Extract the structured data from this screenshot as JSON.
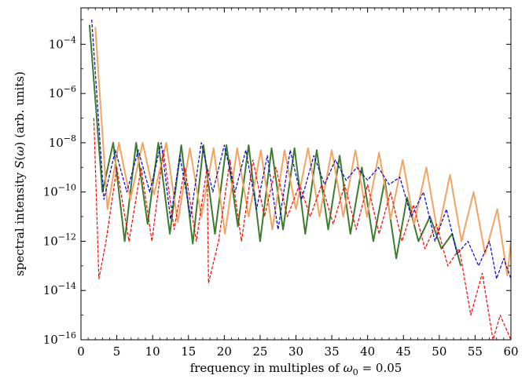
{
  "chart_data": {
    "type": "line",
    "scale": {
      "x": "linear",
      "y": "log"
    },
    "xlabel": {
      "prefix": "frequency in multiples of ",
      "symbol": "ω",
      "subscript": "0",
      "suffix": " = 0.05"
    },
    "ylabel": {
      "prefix": "spectral intensity ",
      "symbol": "S",
      "arg": "ω",
      "suffix": " (arb. units)"
    },
    "xlim": [
      0,
      60
    ],
    "ylim": [
      1e-16,
      0.003
    ],
    "x_ticks": [
      0,
      5,
      10,
      15,
      20,
      25,
      30,
      35,
      40,
      45,
      50,
      55,
      60
    ],
    "x_tick_labels": [
      "0",
      "5",
      "10",
      "15",
      "20",
      "25",
      "30",
      "35",
      "40",
      "45",
      "50",
      "55",
      "60"
    ],
    "y_ticks": [
      1e-16,
      1e-14,
      1e-12,
      1e-10,
      1e-08,
      1e-06,
      0.0001
    ],
    "y_tick_labels": [
      {
        "base": "10",
        "exp": "−16"
      },
      {
        "base": "10",
        "exp": "−14"
      },
      {
        "base": "10",
        "exp": "−12"
      },
      {
        "base": "10",
        "exp": "−10"
      },
      {
        "base": "10",
        "exp": "−8"
      },
      {
        "base": "10",
        "exp": "−6"
      },
      {
        "base": "10",
        "exp": "−4"
      }
    ],
    "grid": false,
    "legend": "none",
    "series": [
      {
        "color": "#3a7d2c",
        "style": "solid",
        "width": 2.0,
        "peaks": [
          [
            1.2,
            0.0006
          ],
          [
            4.5,
            1e-08
          ],
          [
            7.7,
            1e-08
          ],
          [
            10.8,
            1e-08
          ],
          [
            14.0,
            8e-09
          ],
          [
            17.1,
            8e-09
          ],
          [
            20.3,
            8e-09
          ],
          [
            23.4,
            8e-09
          ],
          [
            26.6,
            6e-09
          ],
          [
            29.8,
            6e-09
          ],
          [
            32.9,
            5e-09
          ],
          [
            36.1,
            3e-09
          ],
          [
            39.2,
            1e-09
          ],
          [
            42.4,
            3e-10
          ],
          [
            45.5,
            6e-11
          ],
          [
            48.7,
            1e-11
          ],
          [
            51.8,
            2e-12
          ]
        ],
        "valleys": [
          [
            3.0,
            1e-10
          ],
          [
            6.1,
            1e-12
          ],
          [
            9.3,
            5e-12
          ],
          [
            12.4,
            2e-12
          ],
          [
            15.6,
            8e-13
          ],
          [
            18.7,
            2e-12
          ],
          [
            21.9,
            4e-12
          ],
          [
            25.0,
            1e-12
          ],
          [
            28.2,
            3e-12
          ],
          [
            31.3,
            2e-12
          ],
          [
            34.5,
            3e-12
          ],
          [
            37.6,
            2e-12
          ],
          [
            40.8,
            1e-12
          ],
          [
            44.0,
            2e-13
          ],
          [
            47.1,
            1e-12
          ],
          [
            50.3,
            5e-13
          ],
          [
            53.0,
            1e-13
          ]
        ]
      },
      {
        "color": "#f4a460",
        "style": "solid",
        "width": 2.0,
        "peaks": [
          [
            2.0,
            0.0005
          ],
          [
            5.3,
            1e-08
          ],
          [
            8.6,
            1e-08
          ],
          [
            11.9,
            1e-08
          ],
          [
            15.2,
            6e-09
          ],
          [
            18.5,
            6e-09
          ],
          [
            21.8,
            6e-09
          ],
          [
            25.1,
            5e-09
          ],
          [
            28.4,
            5e-09
          ],
          [
            31.7,
            6e-09
          ],
          [
            35.0,
            5e-09
          ],
          [
            38.3,
            5e-09
          ],
          [
            41.6,
            4e-09
          ],
          [
            44.9,
            2e-09
          ],
          [
            48.2,
            1e-09
          ],
          [
            51.5,
            5e-10
          ],
          [
            54.8,
            1e-10
          ],
          [
            58.1,
            2e-11
          ],
          [
            60.0,
            1e-12
          ]
        ],
        "valleys": [
          [
            3.7,
            2e-11
          ],
          [
            6.9,
            5e-11
          ],
          [
            10.2,
            8e-11
          ],
          [
            13.5,
            6e-12
          ],
          [
            16.8,
            1e-11
          ],
          [
            20.1,
            2e-12
          ],
          [
            23.4,
            1e-11
          ],
          [
            26.7,
            3e-12
          ],
          [
            30.0,
            2e-11
          ],
          [
            33.3,
            1e-11
          ],
          [
            36.6,
            1e-11
          ],
          [
            39.9,
            1e-11
          ],
          [
            43.2,
            8e-12
          ],
          [
            46.5,
            5e-12
          ],
          [
            49.8,
            2e-12
          ],
          [
            53.1,
            1e-12
          ],
          [
            56.4,
            3e-13
          ],
          [
            59.5,
            4e-14
          ]
        ]
      },
      {
        "color": "#0000dd",
        "style": "dashed",
        "width": 1.2,
        "peaks": [
          [
            1.5,
            0.001
          ],
          [
            4.8,
            5e-09
          ],
          [
            8.0,
            5e-09
          ],
          [
            11.2,
            1e-08
          ],
          [
            13.8,
            3e-09
          ],
          [
            16.8,
            1e-08
          ],
          [
            20.0,
            8e-09
          ],
          [
            23.0,
            5e-09
          ],
          [
            26.0,
            3e-09
          ],
          [
            29.2,
            5e-09
          ],
          [
            32.5,
            3e-09
          ],
          [
            35.5,
            2e-09
          ],
          [
            38.5,
            1e-09
          ],
          [
            41.5,
            1e-09
          ],
          [
            44.5,
            4e-10
          ],
          [
            47.8,
            1e-10
          ],
          [
            51.0,
            2e-11
          ],
          [
            54.0,
            1e-12
          ],
          [
            57.0,
            1e-12
          ],
          [
            59.0,
            2e-13
          ]
        ],
        "valleys": [
          [
            3.2,
            5e-11
          ],
          [
            6.4,
            1e-10
          ],
          [
            9.6,
            1e-10
          ],
          [
            12.5,
            8e-12
          ],
          [
            15.3,
            1e-11
          ],
          [
            18.4,
            1e-10
          ],
          [
            21.5,
            1e-10
          ],
          [
            24.5,
            2e-11
          ],
          [
            27.5,
            3e-12
          ],
          [
            30.8,
            5e-11
          ],
          [
            34.0,
            2e-10
          ],
          [
            37.0,
            3e-10
          ],
          [
            40.0,
            3e-10
          ],
          [
            43.0,
            2e-10
          ],
          [
            46.1,
            1e-11
          ],
          [
            49.4,
            1e-12
          ],
          [
            52.5,
            3e-13
          ],
          [
            55.5,
            1e-13
          ],
          [
            58.0,
            3e-14
          ],
          [
            60.0,
            3e-14
          ]
        ]
      },
      {
        "color": "#ff0000",
        "style": "dashed",
        "width": 1.2,
        "peaks": [
          [
            1.8,
            1e-07
          ],
          [
            5.0,
            1e-09
          ],
          [
            8.4,
            1e-09
          ],
          [
            11.5,
            5e-09
          ],
          [
            14.5,
            1e-09
          ],
          [
            17.6,
            1e-09
          ],
          [
            20.8,
            2e-09
          ],
          [
            24.0,
            2e-09
          ],
          [
            27.2,
            1e-09
          ],
          [
            30.5,
            2e-10
          ],
          [
            33.6,
            2e-10
          ],
          [
            36.8,
            2e-10
          ],
          [
            40.0,
            2e-10
          ],
          [
            43.2,
            1e-10
          ],
          [
            46.4,
            3e-11
          ],
          [
            49.6,
            5e-12
          ],
          [
            52.8,
            5e-13
          ],
          [
            56.0,
            5e-14
          ],
          [
            58.5,
            1e-15
          ]
        ],
        "valleys": [
          [
            2.5,
            3e-14
          ],
          [
            3.5,
            1e-12
          ],
          [
            6.7,
            1e-12
          ],
          [
            9.9,
            1e-12
          ],
          [
            13.0,
            3e-12
          ],
          [
            16.1,
            1e-12
          ],
          [
            17.8,
            2e-14
          ],
          [
            19.2,
            1e-12
          ],
          [
            22.4,
            1e-12
          ],
          [
            25.6,
            1e-11
          ],
          [
            28.8,
            1e-11
          ],
          [
            32.0,
            1e-11
          ],
          [
            35.2,
            5e-12
          ],
          [
            38.4,
            3e-12
          ],
          [
            41.6,
            2e-12
          ],
          [
            44.8,
            1e-12
          ],
          [
            48.0,
            5e-13
          ],
          [
            51.2,
            1e-13
          ],
          [
            54.4,
            1e-15
          ],
          [
            57.5,
            1e-16
          ],
          [
            60.0,
            1e-16
          ]
        ]
      }
    ]
  }
}
